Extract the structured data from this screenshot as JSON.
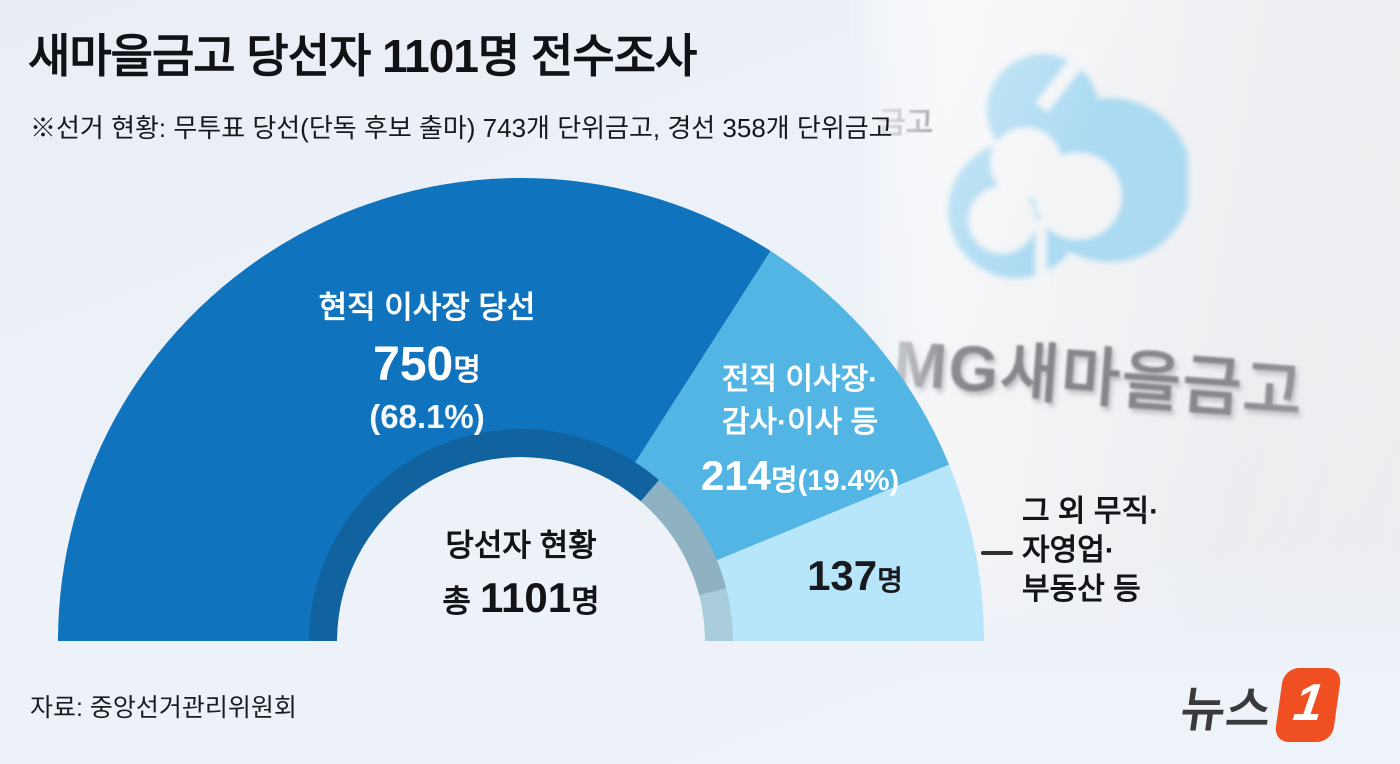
{
  "header": {
    "title": "새마을금고 당선자 1101명 전수조사",
    "subtitle": "※선거 현황: 무투표 당선(단독 후보 출마) 743개 단위금고, 경선 358개 단위금고"
  },
  "chart_data": {
    "type": "pie",
    "subtype": "half_donut",
    "title": "새마을금고 당선자 1101명 전수조사",
    "total": {
      "label_line1": "당선자 현황",
      "prefix": "총",
      "value": "1101",
      "unit": "명"
    },
    "series": [
      {
        "name": "현직 이사장 당선",
        "value": 750,
        "percent": 68.1,
        "color": "#0f73be",
        "inner_rim_color": "#11639f",
        "label": {
          "name": "현직 이사장 당선",
          "value": "750",
          "unit": "명",
          "percent": "(68.1%)"
        }
      },
      {
        "name": "전직 이사장·감사·이사 등",
        "value": 214,
        "percent": 19.4,
        "color": "#53b5e4",
        "inner_rim_color": "#8fb2c3",
        "label": {
          "name_line1": "전직 이사장·",
          "name_line2": "감사·이사 등",
          "value": "214",
          "unit": "명",
          "percent": "(19.4%)"
        }
      },
      {
        "name": "그 외 무직·자영업·부동산 등",
        "value": 137,
        "color": "#b7e5fa",
        "inner_rim_color": "#a9cdda",
        "label": {
          "value": "137",
          "unit": "명"
        },
        "callout": {
          "line1": "그 외 무직·",
          "line2": "자영업·",
          "line3": "부동산 등"
        }
      }
    ],
    "layout": {
      "start_angle_deg": 180,
      "end_angle_deg": 0,
      "rim_offset_deg": 8,
      "legend": "none",
      "grid": "off"
    }
  },
  "photo": {
    "sign_text": "MG새마을금고",
    "sign_fragment": "금고",
    "emblem_color": "#a6d8f2"
  },
  "footer": {
    "source": "자료: 중앙선거관리위원회"
  },
  "brand": {
    "name": "뉴스",
    "numeral": "1",
    "tile_color": "#f04f21"
  }
}
